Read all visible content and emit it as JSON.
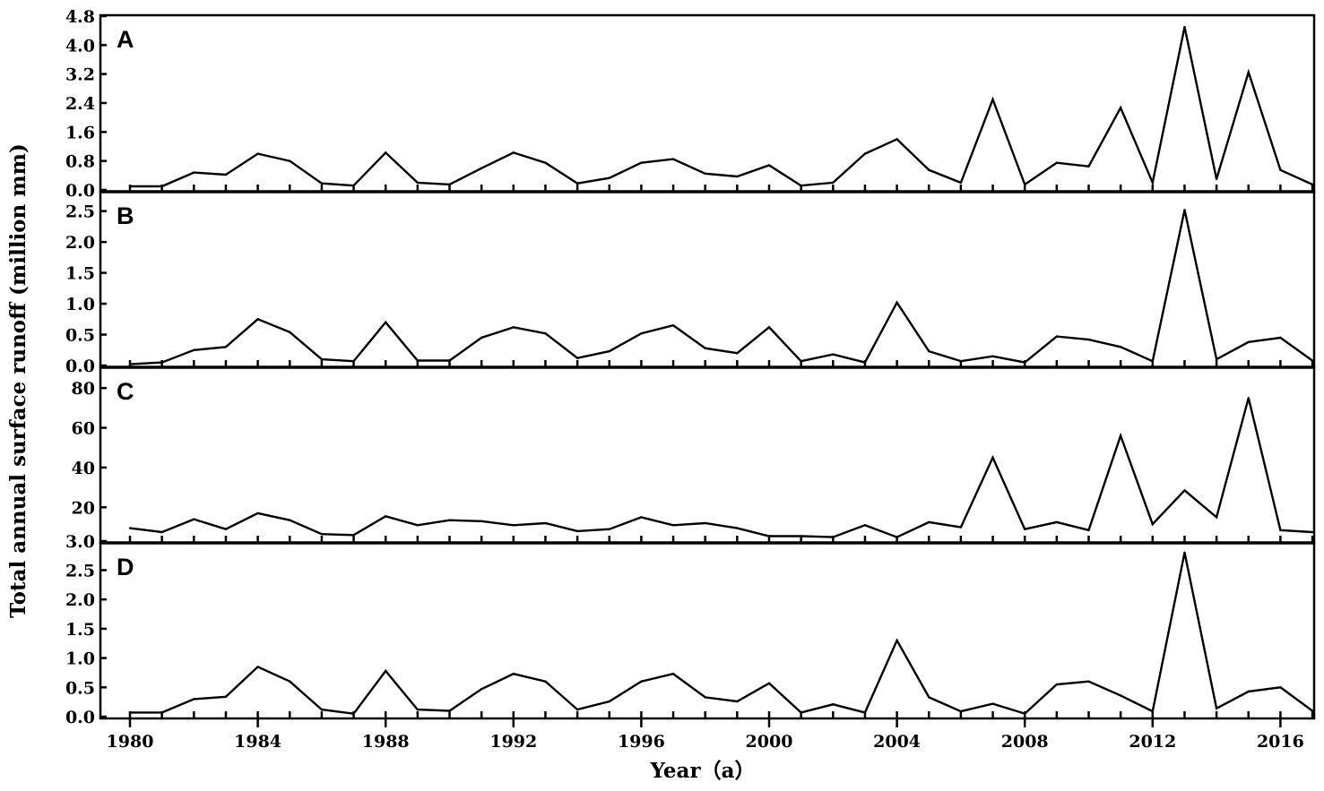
{
  "chart_data": {
    "type": "line",
    "ylabel": "Total annual surface runoff (million mm)",
    "xlabel": "Year（a）",
    "x": [
      1980,
      1981,
      1982,
      1983,
      1984,
      1985,
      1986,
      1987,
      1988,
      1989,
      1990,
      1991,
      1992,
      1993,
      1994,
      1995,
      1996,
      1997,
      1998,
      1999,
      2000,
      2001,
      2002,
      2003,
      2004,
      2005,
      2006,
      2007,
      2008,
      2009,
      2010,
      2011,
      2012,
      2013,
      2014,
      2015,
      2016,
      2017
    ],
    "xticks": [
      "1980",
      "1984",
      "1988",
      "1992",
      "1996",
      "2000",
      "2004",
      "2008",
      "2012",
      "2016"
    ],
    "panels": [
      {
        "label": "A",
        "ylim": [
          0,
          4.8
        ],
        "yticks": [
          "0.0",
          "0.8",
          "1.6",
          "2.4",
          "3.2",
          "4.0",
          "4.8"
        ],
        "values": [
          0.1,
          0.1,
          0.48,
          0.42,
          1.0,
          0.8,
          0.18,
          0.12,
          1.03,
          0.2,
          0.15,
          0.6,
          1.03,
          0.75,
          0.18,
          0.33,
          0.75,
          0.85,
          0.45,
          0.37,
          0.68,
          0.12,
          0.2,
          1.0,
          1.4,
          0.55,
          0.2,
          2.5,
          0.15,
          0.75,
          0.65,
          2.27,
          0.2,
          4.5,
          0.3,
          3.25,
          0.55,
          0.15
        ]
      },
      {
        "label": "B",
        "ylim": [
          0,
          2.8
        ],
        "yticks": [
          "0.0",
          "0.5",
          "1.0",
          "1.5",
          "2.0",
          "2.5"
        ],
        "values": [
          0.02,
          0.05,
          0.25,
          0.3,
          0.75,
          0.54,
          0.1,
          0.07,
          0.7,
          0.08,
          0.08,
          0.45,
          0.62,
          0.52,
          0.12,
          0.23,
          0.52,
          0.65,
          0.28,
          0.2,
          0.62,
          0.07,
          0.18,
          0.05,
          1.02,
          0.23,
          0.07,
          0.15,
          0.05,
          0.47,
          0.42,
          0.3,
          0.07,
          2.52,
          0.1,
          0.38,
          0.45,
          0.08
        ]
      },
      {
        "label": "C",
        "ylim": [
          3,
          90
        ],
        "yticks": [
          "3.0",
          "20",
          "40",
          "60",
          "80"
        ],
        "values": [
          9.5,
          7.5,
          14,
          9,
          17,
          13.5,
          6.5,
          6,
          15.5,
          11,
          13.5,
          13,
          11,
          12,
          8,
          9,
          15,
          11,
          12,
          9.5,
          5.5,
          5.5,
          5,
          11,
          5,
          12.5,
          10,
          45,
          9,
          12.5,
          8.5,
          56,
          11.5,
          28.5,
          15,
          75,
          8.5,
          7.5
        ]
      },
      {
        "label": "D",
        "ylim": [
          0,
          2.95
        ],
        "yticks": [
          "0.0",
          "0.5",
          "1.0",
          "1.5",
          "2.0",
          "2.5"
        ],
        "values": [
          0.07,
          0.07,
          0.3,
          0.34,
          0.85,
          0.6,
          0.12,
          0.05,
          0.78,
          0.12,
          0.1,
          0.47,
          0.73,
          0.6,
          0.12,
          0.26,
          0.6,
          0.73,
          0.33,
          0.26,
          0.57,
          0.07,
          0.21,
          0.07,
          1.3,
          0.33,
          0.09,
          0.22,
          0.05,
          0.55,
          0.6,
          0.36,
          0.09,
          2.8,
          0.14,
          0.43,
          0.5,
          0.1
        ]
      }
    ]
  }
}
